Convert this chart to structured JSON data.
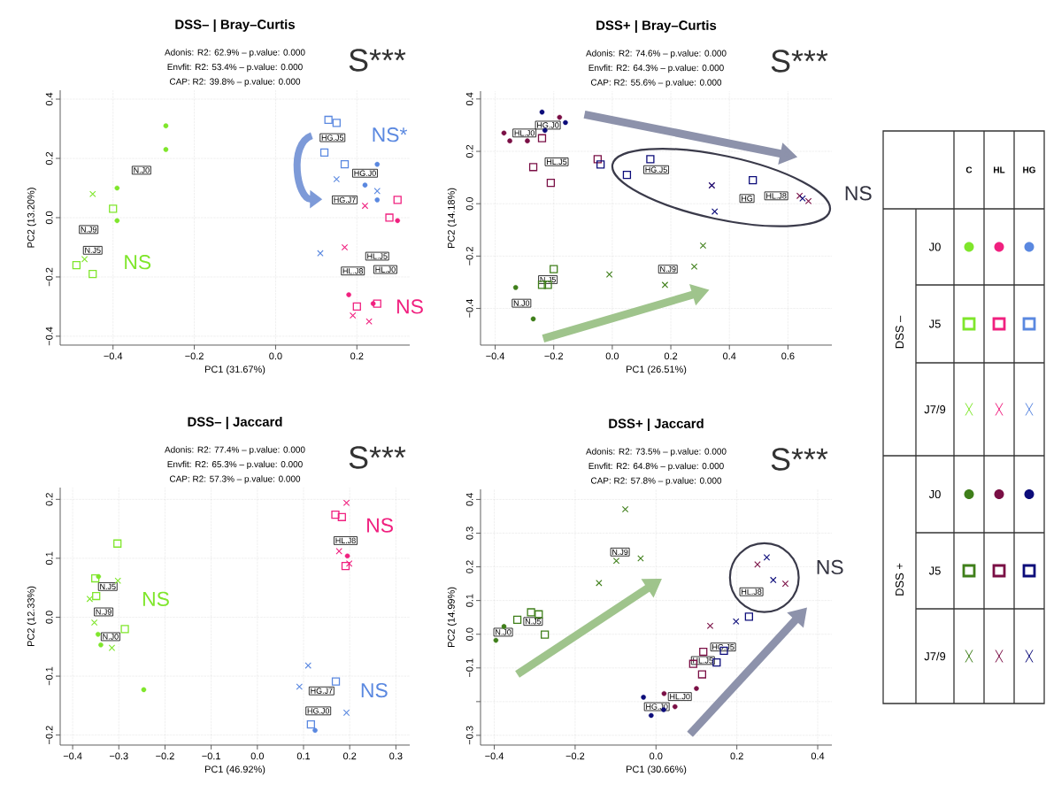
{
  "chart_data": [
    {
      "type": "scatter",
      "title": "DSS– | Bray–Curtis",
      "xlabel": "PC1 (31.67%)",
      "ylabel": "PC2 (13.20%)",
      "grid": true,
      "xlim": [
        -0.53,
        0.33
      ],
      "ylim": [
        -0.43,
        0.43
      ],
      "xticks": [
        {
          "value": -0.4,
          "label": "−0.4"
        },
        {
          "value": -0.2,
          "label": "−0.2"
        },
        {
          "value": 0,
          "label": "0.0"
        },
        {
          "value": 0.2,
          "label": "0.2"
        }
      ],
      "yticks": [
        {
          "value": -0.4,
          "label": "−0.4"
        },
        {
          "value": -0.2,
          "label": "−0.2"
        },
        {
          "value": 0,
          "label": "0.0"
        },
        {
          "value": 0.2,
          "label": "0.2"
        },
        {
          "value": 0.4,
          "label": "0.4"
        }
      ],
      "series": [
        {
          "color": "#7fe62b",
          "marker": "circle",
          "x": [
            -0.27,
            -0.27,
            -0.39,
            -0.39
          ],
          "values": [
            0.31,
            0.23,
            0.1,
            -0.01
          ]
        },
        {
          "color": "#7fe62b",
          "marker": "square",
          "x": [
            -0.4,
            -0.49,
            -0.45
          ],
          "values": [
            0.03,
            -0.16,
            -0.19
          ]
        },
        {
          "color": "#7fe62b",
          "marker": "cross",
          "x": [
            -0.45,
            -0.47
          ],
          "values": [
            0.08,
            -0.14
          ]
        },
        {
          "color": "#f0207f",
          "marker": "circle",
          "x": [
            0.3,
            0.18,
            0.24
          ],
          "values": [
            -0.01,
            -0.26,
            -0.29
          ]
        },
        {
          "color": "#f0207f",
          "marker": "square",
          "x": [
            0.3,
            0.28,
            0.25,
            0.2
          ],
          "values": [
            0.06,
            0.0,
            -0.29,
            -0.3
          ]
        },
        {
          "color": "#f0207f",
          "marker": "cross",
          "x": [
            0.22,
            0.17,
            0.19,
            0.23
          ],
          "values": [
            0.04,
            -0.1,
            -0.33,
            -0.35
          ]
        },
        {
          "color": "#5a88e0",
          "marker": "circle",
          "x": [
            0.25,
            0.22,
            0.25
          ],
          "values": [
            0.18,
            0.11,
            0.06
          ]
        },
        {
          "color": "#5a88e0",
          "marker": "square",
          "x": [
            0.13,
            0.15,
            0.12,
            0.17
          ],
          "values": [
            0.33,
            0.32,
            0.22,
            0.18
          ]
        },
        {
          "color": "#5a88e0",
          "marker": "cross",
          "x": [
            0.15,
            0.25,
            0.11
          ],
          "values": [
            0.13,
            0.09,
            -0.12
          ]
        }
      ],
      "annotations": [
        "Adonis: R2: 62.9% – p.value: 0.000",
        "Envfit: R2: 53.4% – p.value: 0.000",
        "CAP: R2: 39.8% – p.value: 0.000",
        "S***",
        "NS",
        "NS*",
        "NS",
        {
          "text": "N.J0",
          "x": -0.33,
          "y": 0.16
        },
        {
          "text": "N.J9",
          "x": -0.46,
          "y": -0.04
        },
        {
          "text": "N.J5",
          "x": -0.45,
          "y": -0.11
        },
        {
          "text": "HG.J5",
          "x": 0.14,
          "y": 0.27
        },
        {
          "text": "HG.J0",
          "x": 0.22,
          "y": 0.15
        },
        {
          "text": "HG.J7",
          "x": 0.17,
          "y": 0.06
        },
        {
          "text": "HL.J5",
          "x": 0.25,
          "y": -0.13
        },
        {
          "text": "HL.J8",
          "x": 0.19,
          "y": -0.18
        },
        {
          "text": "HL.J0",
          "x": 0.27,
          "y": -0.175
        }
      ]
    },
    {
      "type": "scatter",
      "title": "DSS+ | Bray–Curtis",
      "xlabel": "PC1 (26.51%)",
      "ylabel": "PC2 (14.18%)",
      "grid": true,
      "xlim": [
        -0.45,
        0.75
      ],
      "ylim": [
        -0.54,
        0.43
      ],
      "xticks": [
        {
          "value": -0.4,
          "label": "−0.4"
        },
        {
          "value": -0.2,
          "label": "−0.2"
        },
        {
          "value": 0,
          "label": "0.0"
        },
        {
          "value": 0.2,
          "label": "0.2"
        },
        {
          "value": 0.4,
          "label": "0.4"
        },
        {
          "value": 0.6,
          "label": "0.6"
        }
      ],
      "yticks": [
        {
          "value": -0.4,
          "label": "−0.4"
        },
        {
          "value": -0.2,
          "label": "−0.2"
        },
        {
          "value": 0,
          "label": "0.0"
        },
        {
          "value": 0.2,
          "label": "0.2"
        },
        {
          "value": 0.4,
          "label": "0.4"
        }
      ],
      "series": [
        {
          "color": "#3f7f1a",
          "marker": "circle",
          "x": [
            -0.33,
            -0.27
          ],
          "values": [
            -0.32,
            -0.44
          ]
        },
        {
          "color": "#3f7f1a",
          "marker": "square",
          "x": [
            -0.2,
            -0.24,
            -0.22
          ],
          "values": [
            -0.25,
            -0.31,
            -0.31
          ]
        },
        {
          "color": "#3f7f1a",
          "marker": "cross",
          "x": [
            -0.01,
            0.18,
            0.28,
            0.31
          ],
          "values": [
            -0.27,
            -0.31,
            -0.24,
            -0.16
          ]
        },
        {
          "color": "#7a0f45",
          "marker": "circle",
          "x": [
            -0.37,
            -0.35,
            -0.29,
            -0.18
          ],
          "values": [
            0.27,
            0.24,
            0.24,
            0.33
          ]
        },
        {
          "color": "#7a0f45",
          "marker": "square",
          "x": [
            -0.24,
            -0.27,
            -0.21,
            -0.05
          ],
          "values": [
            0.25,
            0.14,
            0.08,
            0.17
          ]
        },
        {
          "color": "#7a0f45",
          "marker": "cross",
          "x": [
            0.34,
            0.64,
            0.67
          ],
          "values": [
            0.07,
            0.03,
            0.01
          ]
        },
        {
          "color": "#0c0c7a",
          "marker": "circle",
          "x": [
            -0.24,
            -0.16,
            -0.23
          ],
          "values": [
            0.35,
            0.31,
            0.28
          ]
        },
        {
          "color": "#0c0c7a",
          "marker": "square",
          "x": [
            -0.04,
            0.05,
            0.13,
            0.48
          ],
          "values": [
            0.15,
            0.11,
            0.17,
            0.09
          ]
        },
        {
          "color": "#0c0c7a",
          "marker": "cross",
          "x": [
            0.34,
            0.35,
            0.65
          ],
          "values": [
            0.07,
            -0.03,
            0.02
          ]
        }
      ],
      "annotations": [
        "Adonis: R2: 74.6% – p.value: 0.000",
        "Envfit: R2: 64.3% – p.value: 0.000",
        "CAP: R2: 55.6% – p.value: 0.000",
        "S***",
        "NS",
        {
          "text": "HG.J0",
          "x": -0.22,
          "y": 0.3
        },
        {
          "text": "HL.J0",
          "x": -0.3,
          "y": 0.27
        },
        {
          "text": "HL.J5",
          "x": -0.19,
          "y": 0.16
        },
        {
          "text": "HG.J5",
          "x": 0.15,
          "y": 0.13
        },
        {
          "text": "HG",
          "x": 0.46,
          "y": 0.02
        },
        {
          "text": "HL.J8",
          "x": 0.56,
          "y": 0.03
        },
        {
          "text": "N.J5",
          "x": -0.22,
          "y": -0.29
        },
        {
          "text": "N.J0",
          "x": -0.31,
          "y": -0.38
        },
        {
          "text": "N.J9",
          "x": 0.19,
          "y": -0.25
        }
      ]
    },
    {
      "type": "scatter",
      "title": "DSS– | Jaccard",
      "xlabel": "PC1 (46.92%)",
      "ylabel": "PC2 (12.33%)",
      "grid": true,
      "xlim": [
        -0.427,
        0.33
      ],
      "ylim": [
        -0.217,
        0.22
      ],
      "xticks": [
        {
          "value": -0.4,
          "label": "−0.4"
        },
        {
          "value": -0.3,
          "label": "−0.3"
        },
        {
          "value": -0.2,
          "label": "−0.2"
        },
        {
          "value": -0.1,
          "label": "−0.1"
        },
        {
          "value": 0,
          "label": "0.0"
        },
        {
          "value": 0.1,
          "label": "0.1"
        },
        {
          "value": 0.2,
          "label": "0.2"
        },
        {
          "value": 0.3,
          "label": "0.3"
        }
      ],
      "yticks": [
        {
          "value": -0.2,
          "label": "−0.2"
        },
        {
          "value": -0.1,
          "label": "−0.1"
        },
        {
          "value": 0,
          "label": "0.0"
        },
        {
          "value": 0.1,
          "label": "0.1"
        },
        {
          "value": 0.2,
          "label": "0.2"
        }
      ],
      "series": [
        {
          "color": "#7fe62b",
          "marker": "circle",
          "x": [
            -0.344,
            -0.339,
            -0.345,
            -0.246
          ],
          "values": [
            0.069,
            -0.047,
            -0.029,
            -0.123
          ]
        },
        {
          "color": "#7fe62b",
          "marker": "square",
          "x": [
            -0.303,
            -0.351,
            -0.349,
            -0.287
          ],
          "values": [
            0.125,
            0.066,
            0.036,
            -0.02
          ]
        },
        {
          "color": "#7fe62b",
          "marker": "cross",
          "x": [
            -0.363,
            -0.302,
            -0.353,
            -0.315
          ],
          "values": [
            0.031,
            0.062,
            -0.009,
            -0.052
          ]
        },
        {
          "color": "#f0207f",
          "marker": "circle",
          "x": [
            0.195
          ],
          "values": [
            0.104
          ]
        },
        {
          "color": "#f0207f",
          "marker": "square",
          "x": [
            0.169,
            0.183,
            0.191
          ],
          "values": [
            0.174,
            0.17,
            0.087
          ]
        },
        {
          "color": "#f0207f",
          "marker": "cross",
          "x": [
            0.193,
            0.199,
            0.177
          ],
          "values": [
            0.194,
            0.091,
            0.112
          ]
        },
        {
          "color": "#5a88e0",
          "marker": "circle",
          "x": [
            0.125
          ],
          "values": [
            -0.192
          ]
        },
        {
          "color": "#5a88e0",
          "marker": "square",
          "x": [
            0.17,
            0.116
          ],
          "values": [
            -0.109,
            -0.182
          ]
        },
        {
          "color": "#5a88e0",
          "marker": "cross",
          "x": [
            0.11,
            0.091,
            0.193
          ],
          "values": [
            -0.082,
            -0.118,
            -0.162
          ]
        }
      ],
      "annotations": [
        "Adonis: R2: 77.4% – p.value: 0.000",
        "Envfit: R2: 65.3% – p.value: 0.000",
        "CAP: R2: 57.3% – p.value: 0.000",
        "S***",
        "NS",
        "NS",
        "NS",
        {
          "text": "N.J5",
          "x": -0.324,
          "y": 0.052
        },
        {
          "text": "N.J9",
          "x": -0.333,
          "y": 0.009
        },
        {
          "text": "N.J0",
          "x": -0.318,
          "y": -0.033
        },
        {
          "text": "HL.J8",
          "x": 0.191,
          "y": 0.13
        },
        {
          "text": "HG.J7",
          "x": 0.139,
          "y": -0.125
        },
        {
          "text": "HG.J0",
          "x": 0.132,
          "y": -0.159
        }
      ]
    },
    {
      "type": "scatter",
      "title": "DSS+ | Jaccard",
      "xlabel": "PC1 (30.66%)",
      "ylabel": "PC2 (14.99%)",
      "grid": true,
      "xlim": [
        -0.434,
        0.435
      ],
      "ylim": [
        -0.329,
        0.43
      ],
      "xticks": [
        {
          "value": -0.4,
          "label": "−0.4"
        },
        {
          "value": -0.2,
          "label": "−0.2"
        },
        {
          "value": 0,
          "label": "0.0"
        },
        {
          "value": 0.2,
          "label": "0.2"
        },
        {
          "value": 0.4,
          "label": "0.4"
        }
      ],
      "yticks": [
        {
          "value": -0.3,
          "label": "−0.3"
        },
        {
          "value": -0.2,
          "label": null
        },
        {
          "value": -0.1,
          "label": "−0.1"
        },
        {
          "value": 0,
          "label": "0.0"
        },
        {
          "value": 0.1,
          "label": "0.1"
        },
        {
          "value": 0.2,
          "label": "0.2"
        },
        {
          "value": 0.3,
          "label": "0.3"
        },
        {
          "value": 0.4,
          "label": "0.4"
        }
      ],
      "series": [
        {
          "color": "#3f7f1a",
          "marker": "circle",
          "x": [
            -0.396,
            -0.376
          ],
          "values": [
            -0.018,
            0.023
          ]
        },
        {
          "color": "#3f7f1a",
          "marker": "square",
          "x": [
            -0.343,
            -0.309,
            -0.29,
            -0.275
          ],
          "values": [
            0.043,
            0.065,
            0.059,
            -0.001
          ]
        },
        {
          "color": "#3f7f1a",
          "marker": "cross",
          "x": [
            -0.076,
            -0.038,
            -0.098,
            -0.141
          ],
          "values": [
            0.371,
            0.225,
            0.218,
            0.152
          ]
        },
        {
          "color": "#7a0f45",
          "marker": "circle",
          "x": [
            0.02,
            0.1,
            0.047
          ],
          "values": [
            -0.176,
            -0.161,
            -0.215
          ]
        },
        {
          "color": "#7a0f45",
          "marker": "square",
          "x": [
            0.092,
            0.114,
            0.117
          ],
          "values": [
            -0.088,
            -0.119,
            -0.052
          ]
        },
        {
          "color": "#7a0f45",
          "marker": "cross",
          "x": [
            0.134,
            0.251,
            0.32
          ],
          "values": [
            0.025,
            0.207,
            0.15
          ]
        },
        {
          "color": "#0c0c7a",
          "marker": "circle",
          "x": [
            -0.031,
            -0.012,
            0.019
          ],
          "values": [
            -0.187,
            -0.241,
            -0.224
          ]
        },
        {
          "color": "#0c0c7a",
          "marker": "square",
          "x": [
            0.15,
            0.168,
            0.23
          ],
          "values": [
            -0.084,
            -0.049,
            0.052
          ]
        },
        {
          "color": "#0c0c7a",
          "marker": "cross",
          "x": [
            0.198,
            0.274,
            0.29
          ],
          "values": [
            0.038,
            0.228,
            0.161
          ]
        }
      ],
      "annotations": [
        "Adonis: R2: 73.5% – p.value: 0.000",
        "Envfit: R2: 64.8% – p.value: 0.000",
        "CAP: R2: 57.8% – p.value: 0.000",
        "S***",
        "NS",
        {
          "text": "N.J0",
          "x": -0.378,
          "y": 0.006
        },
        {
          "text": "N.J5",
          "x": -0.304,
          "y": 0.038
        },
        {
          "text": "N.J9",
          "x": -0.089,
          "y": 0.244
        },
        {
          "text": "HL.J0",
          "x": 0.059,
          "y": -0.185
        },
        {
          "text": "HG.J0",
          "x": 0.002,
          "y": -0.215
        },
        {
          "text": "HG.J5",
          "x": 0.166,
          "y": -0.038
        },
        {
          "text": "HL.J5",
          "x": 0.116,
          "y": -0.078
        },
        {
          "text": "HL.J8",
          "x": 0.236,
          "y": 0.126
        }
      ]
    },
    {
      "type": "other",
      "annotations": [
        "C",
        "HL",
        "HG",
        "DSS –",
        "J0",
        "J5",
        "J7/9",
        "DSS +",
        "J0",
        "J5",
        "J7/9"
      ]
    }
  ]
}
